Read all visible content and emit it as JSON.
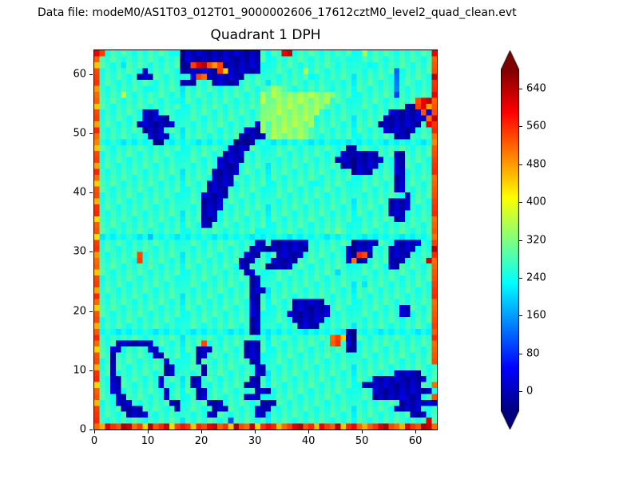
{
  "header": {
    "datafile_label": "Data file: modeM0/AS1T03_012T01_9000002606_17612cztM0_level2_quad_clean.evt"
  },
  "chart_data": {
    "type": "heatmap",
    "title": "Quadrant 1 DPH",
    "x_range": [
      0,
      64
    ],
    "y_range": [
      0,
      64
    ],
    "x_ticks": [
      0,
      10,
      20,
      30,
      40,
      50,
      60
    ],
    "y_ticks": [
      0,
      10,
      20,
      30,
      40,
      50,
      60
    ],
    "colormap": "jet",
    "colorbar": {
      "ticks": [
        640,
        560,
        480,
        400,
        320,
        240,
        160,
        80,
        0
      ],
      "vmin": -40,
      "vmax": 680,
      "extend": "both"
    },
    "grid": {
      "rows_order": "top-to-bottom, first row is detector y=63, last row is y=0",
      "level_values": {
        "n": 0,
        "b": 120,
        "c": 230,
        "g": 265,
        "G": 335,
        "Y": 460,
        "o": 540,
        "r": 625
      },
      "rows": [
        "rogggggggggggggcnnnnnnnnnnnnnnnggggrrgggggggggggggGggggggggggggr",
        "ogggggggggggggggnnnnnnnnnnnnnnnggggggggggggggcgggggggggggggggggo",
        "YggggcggggggggggnnorroYonnnnnnngggggggggggggggggggccgggggggggggo",
        "oggggggggnggggggnnnnnnnoYnnnnnnggggggggGggggggggggggggggbggggggo",
        "ogggggggnnnggggg0gnoonnnnnnnggggggggggggcgggggggggggggggbggggggr",
        "ogggggggggggggggnnngggnnnnngggggggggggggggggcgggggggggggbggggggo",
        "YgggggggggcgggggggggggggggggggggGGGgggggggggggggggggggggbggggggo",
        "oggggGgggggggggggggggggggggggggGGGGGGGGGGGGGGgggggggggggbggggggr",
        "oggggggggggggggcgggggggggggggggGGGGGGGGGGGGGggggggggggggggggorro",
        "YggggggggggggggggggggggggggggggGGGGGGGGGGGGgggggggggggggggnnorYo",
        "oggggggggnnngggggggggggggggggggGGGGGGGGGGGgggggggggggggnnnnnnono",
        "oggggggggnnnnngggggggggggggggggGGGGGGGGGGgggggggggggggnnnnnnnnor",
        "YgggggggnnnnnnngggggggggggggggnGGGGGGGGGGggggggggggggnnnnnnnngro",
        "oggggggggnnnngggggggggggggggnnnGGGGGGGGGggggggggggggggnnnnnngggo",
        "ogggggggggnnnngggggggggggggnnnnnGGGGGGGGggggggggggggggggnnnggggo",
        "oggggggggggnngggggggggggggnnnngggggggggggggggcgggggggggggggggggo",
        "Yggggggggggggggggggggggggnnnnggggggggggggggggggnnggggggggggggggo",
        "ogggggggggggggggggggggggnnnnggggggggggggggggggnnnnnnngggnngggggo",
        "oggggggggggggggggggggggnnnnngggggggggggggggggnnnnnnnnnggnngggggo",
        "Yggggggggggggggggggggggnnnngggggggggggggggggggnnnnnnngggnngggggo",
        "ogggggggggggggggggggggnnnnngggggggggggggggggggggnnnnggggnngggggo",
        "ogggggggggggggggggggggnnnnggggggggggggggggggggggggggggggnngggggo",
        "Yggggggggggggggggggggnnnnngggggggggggggggcggggggggggggggnngggggo",
        "oggggggggggggggggggggnnnngggggggggggggggggggggggggggggggnngggggo",
        "ogggggggggggggggggggnnnnngggggggggggggggggggggggggggggggggnggggo",
        "Ygggggggggggggggggggnnnngggggggggggggggggggggggggggggggnnnnggggo",
        "ogggggggggggggggggggnnnngggggggggggggggggggggggggggggggnnnnggggo",
        "ogggggggggggggggggggnnnggggggggggggggggggggggggggggggggnnngggggo",
        "Ygggggggggggggggggggnnngggggggggggggggggggggggggggggggggnngggggo",
        "ogggggggggggggggggggnngggggggggggggggggggggggggggggggggggggggggo",
        "ogggggggggggggggggggggggggggggcggggggggggggggGgggggggggggggggggo",
        "Ygggggggggcggggggggggggggggggggggggggggggggggggggggggggggggggggo",
        "ogggggggggggggggggggggggggggggnngnnnnnnnggggggggnnnnngggnnnnnggo",
        "oggggggggggggggggggggggggggggnnnnnnnnnnngggggggnnnnngggnnnnngggr",
        "Ygggggggogggggggggggggggggggnnngggnnnnnggggggggnnoongggnnnnggggo",
        "ogggggggoggggggggggggggggggnnngggnnnnngggggggggnonnggggnnnggggro",
        "oggggggggggggggggggggggggggnngggnnnnnggggggggggggggggggnnggggggo",
        "Ygggggggggggggggggggggggggggnngggggggggggggggcgggggggggggggggggo",
        "oggggggggggggggggggggggggggggnnggggggggggggggggggggggggggggggggo",
        "oggggggggggggggggggggggggggggnngggggggggggggggggggcggggggggggggo",
        "Yggggggggggggggggggggggggggggnnngggggggggggggggggggggggggggggggo",
        "oggggggggggggggggggggggggggggnnggggggggggggggggggggggggggggggggo",
        "oggggggggggggggggggggggggggggnnggggggnnnnnnggggggggggggggggggggo",
        "Yggggggggggggggggggggggggggggnnggggggnnnnnnngggggggggggggnnggggo",
        "oggggggggggggggggggggggggggggnngggggnnnnnnnngggggggggggggnnggggo",
        "oggggggggggggggggggggggggggggnnggggggnnnnnnggggggggggggggggggggo",
        "Yggggggggggggggggggggggggggggnngggggggnnnngggggggggggggggggggggo",
        "oggggggggggggggggggggggggggggnnggggggggggggggggnnggggggggggggggo",
        "ogggggggggggggggggggggggggggggggggggggggggggooYnnggggggggggggggo",
        "ogggnnnnnnngggggggggogggggggnnngggggggggggggoognnggggggggggggggo",
        "Yggnngggggnngggggggnnnggggggnnnggggggggggggggggnnggggggggggggggo",
        "oggngggggggnnggggggnngggggggnnnggggggggggggggggggggggggggggggggo",
        "oggngggggggggngggggngggggggggnnggggggggggggggggggggggggggggggggo",
        "Yggngggggggggnngggggngggggggggnnggggggggggggggggggggggggggggggggo",
        "oggngggggggggnngggggngggggggggnnggggggggggggggggggggggggnnnnngggggo",
        "oggnngggggggngggggnngggggggggnngggggggggggggggggggggnnnnnnnnnngggo",
        "Yggnngggggggngggggnnggggggggnnngggggggggggggggggggnnnnnnnnnnnggo",
        "oggnnggggggggngggggnngggggggggnnngggggggggggggggggggnnnnnnnnnnnggo",
        "ogggnngggggggngggggnngggggggnnngggggggggggggggggggggnnnnnnnnnggo",
        "Ygggnnngggggggnngggggnnngggggggnnngggggggggggggggggggggggnnnnnnngggo",
        "oggggnnnnggggggnggggggnnngggggnnngggggggggggggggggggggggnnnnnggggo",
        "ogggggnnnngggggggggggnngggggggnngggggggggggggggggggggggggggnnnggggo",
        "oggggggggggggggggggggggggbggggggggggggggggggggggggggggggggggggr",
        "oYroorrooYroorYoroYoorrooYroorYoroYoorrooYroorYoroYoorrooYroorro"
      ]
    },
    "render_hints": {
      "jitter_amplitude": 8,
      "module_pitch": 16,
      "module_boundary_dim": 28
    }
  }
}
